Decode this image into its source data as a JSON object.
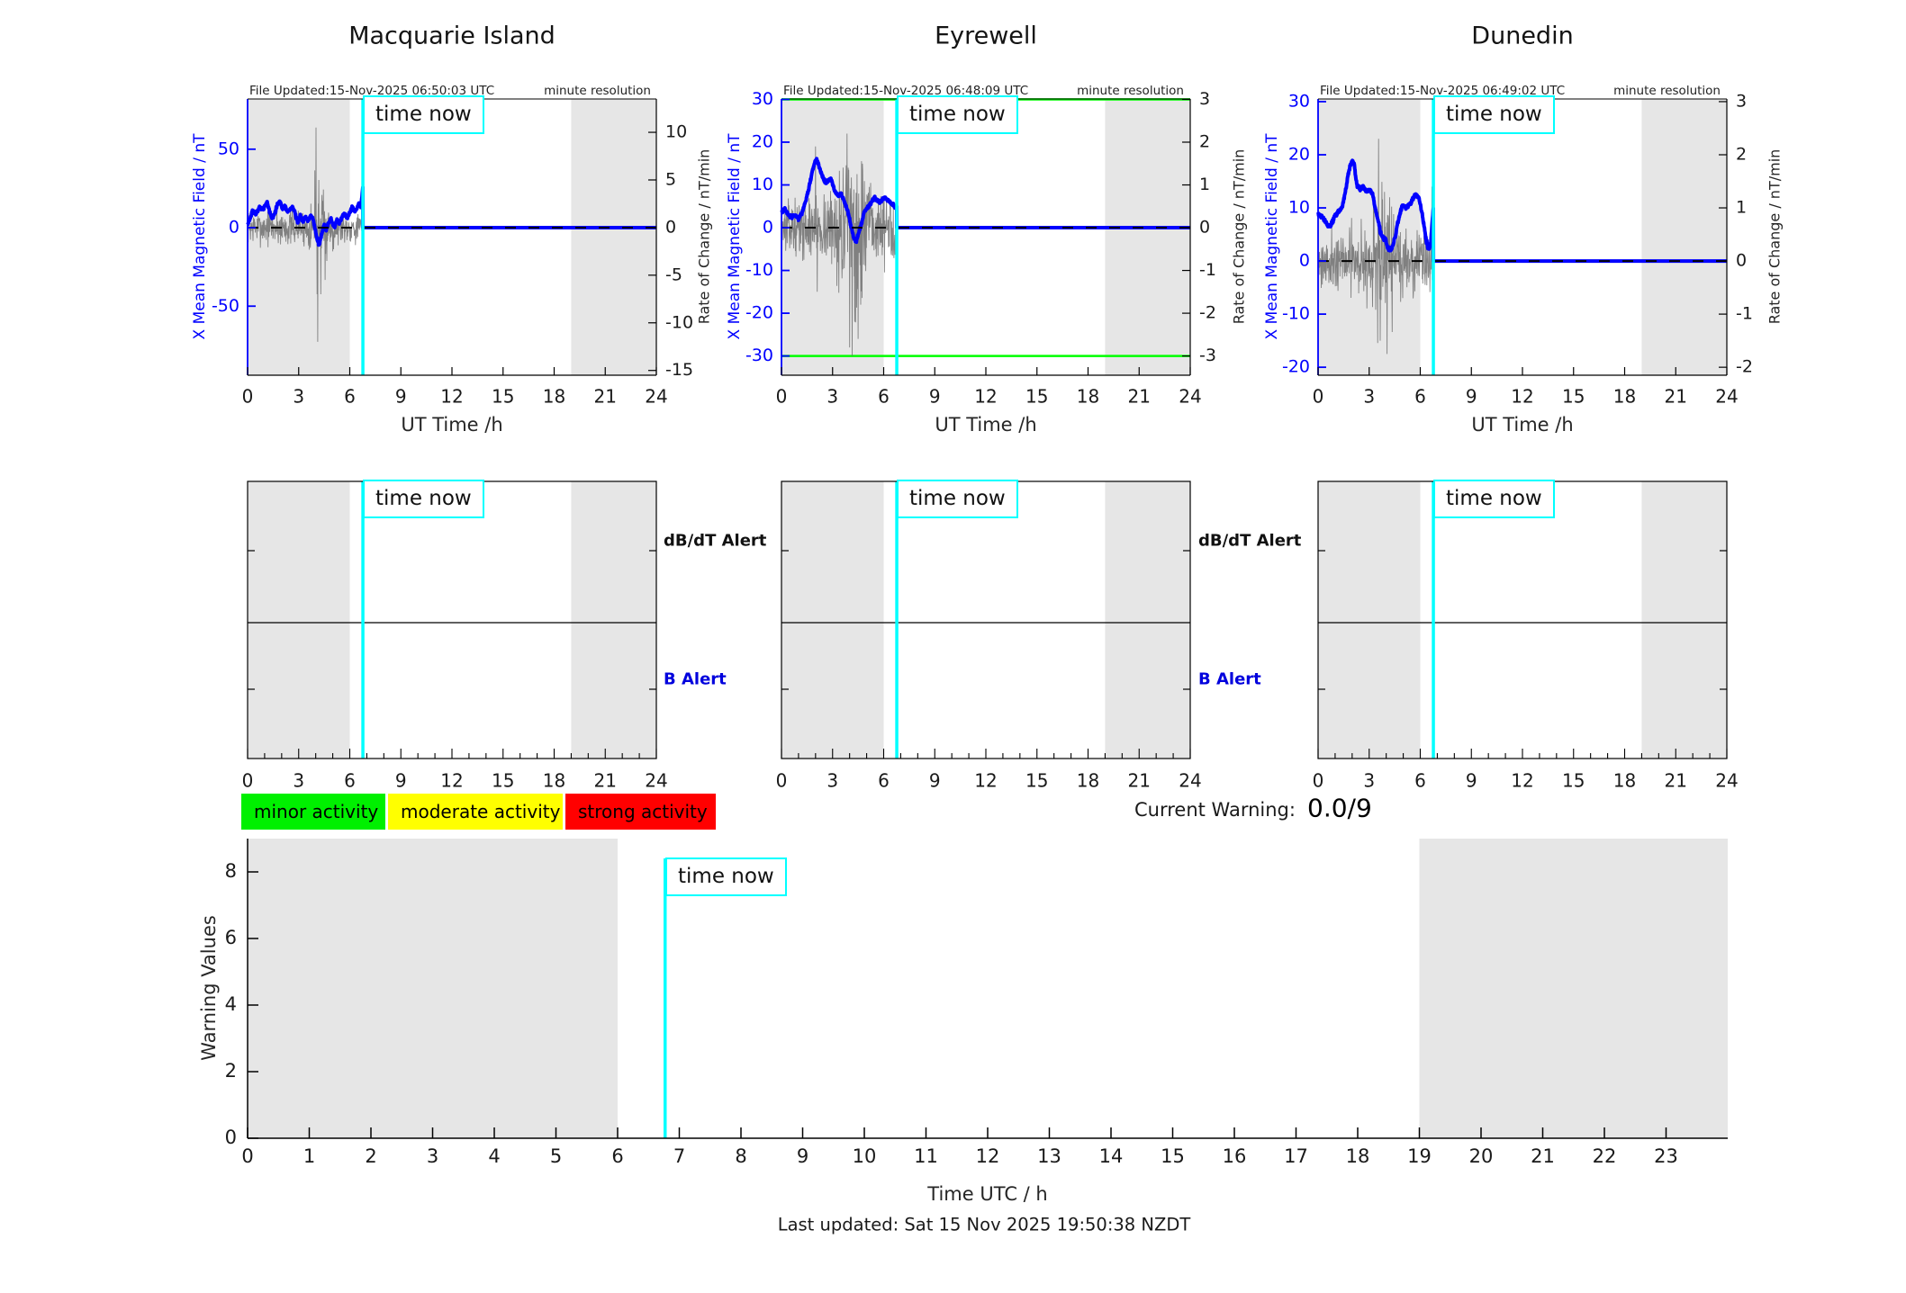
{
  "page": {
    "background": "#ffffff"
  },
  "labels": {
    "time_now": "time now",
    "db_dt_alert": "dB/dT Alert",
    "b_alert": "B Alert",
    "minute_resolution": "minute resolution"
  },
  "colors": {
    "field_line": "#0000ff",
    "noise_line": "#666666",
    "threshold_line": "#00ff00",
    "time_now_line": "#00ffff",
    "night_shading": "#e6e6e6",
    "axis_left": "#0000ff",
    "axis_dark": "#000000",
    "legend_minor": "#00f000",
    "legend_moderate": "#ffff00",
    "legend_strong": "#ff0000"
  },
  "time_now_hour": 6.77,
  "shaded_hours": [
    [
      0,
      6
    ],
    [
      19,
      24
    ]
  ],
  "legend": {
    "items": [
      {
        "label": "minor activity",
        "color": "#00f000"
      },
      {
        "label": "moderate activity",
        "color": "#ffff00"
      },
      {
        "label": "strong activity",
        "color": "#ff0000"
      }
    ]
  },
  "current_warning": {
    "label": "Current Warning:",
    "value": "0.0/9"
  },
  "footer": {
    "last_updated": "Last updated: Sat 15 Nov 2025 19:50:38 NZDT"
  },
  "chart_data": {
    "stations": [
      {
        "type": "line",
        "title": "Macquarie Island",
        "file_updated": "File Updated:15-Nov-2025 06:50:03 UTC",
        "resolution_note": "minute resolution",
        "x_axis": {
          "label": "UT Time /h",
          "ticks": [
            0,
            3,
            6,
            9,
            12,
            15,
            18,
            21,
            24
          ],
          "lim": [
            0,
            24
          ]
        },
        "left_axis": {
          "label": "X Mean Magnetic Field / nT",
          "ticks": [
            50,
            0,
            -50
          ],
          "lim": [
            -94,
            82
          ]
        },
        "right_axis": {
          "label": "Rate of Change / nT/min",
          "ticks": [
            10,
            5,
            0,
            -5,
            -10,
            -15
          ],
          "lim": [
            -15.5,
            13.5
          ]
        },
        "threshold_lines_left_units": null,
        "flat_value_after_time_now": 0,
        "field_nT": [
          [
            0,
            2
          ],
          [
            0.15,
            6
          ],
          [
            0.3,
            11
          ],
          [
            0.5,
            9
          ],
          [
            0.7,
            13
          ],
          [
            0.9,
            11
          ],
          [
            1.05,
            15
          ],
          [
            1.15,
            16
          ],
          [
            1.3,
            10
          ],
          [
            1.45,
            6
          ],
          [
            1.6,
            9
          ],
          [
            1.75,
            15
          ],
          [
            1.9,
            17
          ],
          [
            2.05,
            12
          ],
          [
            2.2,
            14
          ],
          [
            2.35,
            10
          ],
          [
            2.5,
            12
          ],
          [
            2.65,
            13
          ],
          [
            2.8,
            9
          ],
          [
            2.95,
            3
          ],
          [
            3.1,
            8
          ],
          [
            3.25,
            4
          ],
          [
            3.4,
            7
          ],
          [
            3.55,
            4
          ],
          [
            3.7,
            8
          ],
          [
            3.85,
            5
          ],
          [
            3.95,
            0
          ],
          [
            4.1,
            -8
          ],
          [
            4.2,
            -11
          ],
          [
            4.35,
            -4
          ],
          [
            4.5,
            2
          ],
          [
            4.6,
            -2
          ],
          [
            4.75,
            3
          ],
          [
            4.9,
            6
          ],
          [
            5.0,
            2
          ],
          [
            5.1,
            0
          ],
          [
            5.25,
            5
          ],
          [
            5.4,
            3
          ],
          [
            5.55,
            7
          ],
          [
            5.7,
            9
          ],
          [
            5.85,
            6
          ],
          [
            6.0,
            10
          ],
          [
            6.15,
            13
          ],
          [
            6.3,
            10
          ],
          [
            6.45,
            13
          ],
          [
            6.55,
            16
          ],
          [
            6.65,
            13
          ],
          [
            6.72,
            20
          ],
          [
            6.77,
            26
          ]
        ],
        "field_jitter_nT": 1.2,
        "rate_noise": {
          "seed": 7,
          "envelope": [
            [
              0,
              1.6
            ],
            [
              1,
              1.8
            ],
            [
              2,
              2.0
            ],
            [
              3,
              1.8
            ],
            [
              3.5,
              2.2
            ],
            [
              3.9,
              2.8
            ],
            [
              4.4,
              3.0
            ],
            [
              4.9,
              2.2
            ],
            [
              5.4,
              1.7
            ],
            [
              6,
              1.5
            ],
            [
              6.77,
              1.7
            ]
          ],
          "spikes": [
            [
              3.95,
              6
            ],
            [
              4.02,
              10.5
            ],
            [
              4.08,
              -7
            ],
            [
              4.12,
              -12
            ],
            [
              4.18,
              5
            ],
            [
              4.3,
              -7
            ],
            [
              4.45,
              4
            ],
            [
              4.55,
              -5.5
            ],
            [
              4.65,
              -3.5
            ],
            [
              5.0,
              -2.5
            ]
          ]
        }
      },
      {
        "type": "line",
        "title": "Eyrewell",
        "file_updated": "File Updated:15-Nov-2025 06:48:09 UTC",
        "resolution_note": "minute resolution",
        "x_axis": {
          "label": "UT Time /h",
          "ticks": [
            0,
            3,
            6,
            9,
            12,
            15,
            18,
            21,
            24
          ],
          "lim": [
            0,
            24
          ]
        },
        "left_axis": {
          "label": "X Mean Magnetic Field / nT",
          "ticks": [
            30,
            20,
            10,
            0,
            -10,
            -20,
            -30
          ],
          "lim": [
            -34.5,
            30.1
          ]
        },
        "right_axis": {
          "label": "Rate of Change / nT/min",
          "ticks": [
            3,
            2,
            1,
            0,
            -1,
            -2,
            -3
          ],
          "lim": [
            -3.45,
            3.01
          ]
        },
        "threshold_lines_left_units": [
          30,
          -30
        ],
        "flat_value_after_time_now": 0,
        "field_nT": [
          [
            0,
            3.5
          ],
          [
            0.2,
            4.5
          ],
          [
            0.4,
            3
          ],
          [
            0.6,
            2.5
          ],
          [
            0.8,
            3
          ],
          [
            1.0,
            2
          ],
          [
            1.2,
            3.5
          ],
          [
            1.4,
            6
          ],
          [
            1.6,
            9
          ],
          [
            1.8,
            13
          ],
          [
            1.95,
            15
          ],
          [
            2.05,
            16
          ],
          [
            2.15,
            15
          ],
          [
            2.3,
            13
          ],
          [
            2.45,
            11.5
          ],
          [
            2.6,
            10.5
          ],
          [
            2.75,
            11
          ],
          [
            2.9,
            11.5
          ],
          [
            3.05,
            9.5
          ],
          [
            3.2,
            8
          ],
          [
            3.35,
            7.5
          ],
          [
            3.5,
            8
          ],
          [
            3.65,
            6.5
          ],
          [
            3.8,
            5
          ],
          [
            3.95,
            3
          ],
          [
            4.1,
            0
          ],
          [
            4.25,
            -2.5
          ],
          [
            4.4,
            -3
          ],
          [
            4.55,
            -1
          ],
          [
            4.7,
            1
          ],
          [
            4.85,
            3.5
          ],
          [
            5.0,
            4.5
          ],
          [
            5.15,
            5
          ],
          [
            5.3,
            6
          ],
          [
            5.45,
            7
          ],
          [
            5.6,
            6.5
          ],
          [
            5.75,
            6
          ],
          [
            5.9,
            6.5
          ],
          [
            6.05,
            7
          ],
          [
            6.2,
            6.5
          ],
          [
            6.35,
            6
          ],
          [
            6.5,
            5.5
          ],
          [
            6.65,
            5
          ],
          [
            6.77,
            5
          ]
        ],
        "field_jitter_nT": 0.45,
        "rate_noise": {
          "seed": 13,
          "envelope": [
            [
              0,
              0.55
            ],
            [
              1,
              0.6
            ],
            [
              2,
              0.75
            ],
            [
              3,
              0.9
            ],
            [
              3.4,
              1.3
            ],
            [
              3.8,
              2.0
            ],
            [
              4.3,
              2.3
            ],
            [
              4.8,
              1.5
            ],
            [
              5.3,
              0.9
            ],
            [
              6,
              0.75
            ],
            [
              6.77,
              0.9
            ]
          ],
          "spikes": [
            [
              2.0,
              1.9
            ],
            [
              2.1,
              -1.5
            ],
            [
              3.85,
              2.2
            ],
            [
              4.0,
              -2.8
            ],
            [
              4.15,
              -3.0
            ],
            [
              4.3,
              -2.2
            ],
            [
              4.5,
              -2.6
            ],
            [
              4.65,
              -1.8
            ]
          ]
        }
      },
      {
        "type": "line",
        "title": "Dunedin",
        "file_updated": "File Updated:15-Nov-2025 06:49:02 UTC",
        "resolution_note": "minute resolution",
        "x_axis": {
          "label": "UT Time /h",
          "ticks": [
            0,
            3,
            6,
            9,
            12,
            15,
            18,
            21,
            24
          ],
          "lim": [
            0,
            24
          ]
        },
        "left_axis": {
          "label": "X Mean Magnetic Field / nT",
          "ticks": [
            30,
            20,
            10,
            0,
            -10,
            -20
          ],
          "lim": [
            -21.5,
            30.5
          ]
        },
        "right_axis": {
          "label": "Rate of Change / nT/min",
          "ticks": [
            3,
            2,
            1,
            0,
            -1,
            -2
          ],
          "lim": [
            -2.15,
            3.05
          ]
        },
        "threshold_lines_left_units": null,
        "flat_value_after_time_now": 0,
        "field_nT": [
          [
            0,
            9
          ],
          [
            0.15,
            8.5
          ],
          [
            0.3,
            8
          ],
          [
            0.5,
            7
          ],
          [
            0.7,
            6.5
          ],
          [
            0.85,
            7.5
          ],
          [
            1.0,
            8.5
          ],
          [
            1.15,
            9
          ],
          [
            1.3,
            9.5
          ],
          [
            1.45,
            10.5
          ],
          [
            1.6,
            13
          ],
          [
            1.75,
            16
          ],
          [
            1.9,
            18
          ],
          [
            2.0,
            19
          ],
          [
            2.1,
            18.5
          ],
          [
            2.2,
            16
          ],
          [
            2.3,
            14
          ],
          [
            2.45,
            13.5
          ],
          [
            2.6,
            14
          ],
          [
            2.75,
            13.5
          ],
          [
            2.9,
            13
          ],
          [
            3.05,
            13.5
          ],
          [
            3.2,
            12.5
          ],
          [
            3.35,
            10
          ],
          [
            3.5,
            8
          ],
          [
            3.65,
            5.5
          ],
          [
            3.8,
            4.5
          ],
          [
            3.95,
            4
          ],
          [
            4.1,
            2.5
          ],
          [
            4.25,
            2
          ],
          [
            4.4,
            3
          ],
          [
            4.55,
            5
          ],
          [
            4.7,
            7.5
          ],
          [
            4.85,
            9.5
          ],
          [
            5.0,
            10.5
          ],
          [
            5.15,
            10
          ],
          [
            5.3,
            10.5
          ],
          [
            5.45,
            11
          ],
          [
            5.6,
            12
          ],
          [
            5.75,
            12.5
          ],
          [
            5.9,
            12
          ],
          [
            6.05,
            10
          ],
          [
            6.2,
            7
          ],
          [
            6.35,
            4
          ],
          [
            6.5,
            2
          ],
          [
            6.6,
            3
          ],
          [
            6.7,
            7
          ],
          [
            6.77,
            10
          ]
        ],
        "field_jitter_nT": 0.45,
        "rate_noise": {
          "seed": 21,
          "envelope": [
            [
              0,
              0.5
            ],
            [
              1,
              0.55
            ],
            [
              2,
              0.6
            ],
            [
              3,
              0.75
            ],
            [
              3.4,
              1.1
            ],
            [
              3.8,
              1.5
            ],
            [
              4.3,
              1.3
            ],
            [
              4.8,
              0.85
            ],
            [
              5.4,
              0.55
            ],
            [
              6.1,
              0.6
            ],
            [
              6.77,
              0.85
            ]
          ],
          "spikes": [
            [
              3.55,
              2.3
            ],
            [
              3.65,
              -1.5
            ],
            [
              3.9,
              1.3
            ],
            [
              4.05,
              -1.75
            ],
            [
              4.2,
              1.2
            ],
            [
              6.68,
              1.4
            ],
            [
              6.74,
              -1.2
            ]
          ]
        }
      }
    ],
    "alert_charts": {
      "count": 3,
      "x_axis": {
        "ticks": [
          0,
          3,
          6,
          9,
          12,
          15,
          18,
          21,
          24
        ],
        "lim": [
          0,
          24
        ],
        "minor_every": 1
      },
      "rows": [
        "dB/dT Alert",
        "B Alert"
      ],
      "events": []
    },
    "warning_chart": {
      "type": "line",
      "ylabel": "Warning Values",
      "xlabel": "Time UTC / h",
      "y_ticks": [
        0,
        2,
        4,
        6,
        8
      ],
      "ylim": [
        0,
        9
      ],
      "x_ticks": [
        0,
        1,
        2,
        3,
        4,
        5,
        6,
        7,
        8,
        9,
        10,
        11,
        12,
        13,
        14,
        15,
        16,
        17,
        18,
        19,
        20,
        21,
        22,
        23
      ],
      "xlim": [
        0,
        24
      ],
      "series": []
    }
  }
}
